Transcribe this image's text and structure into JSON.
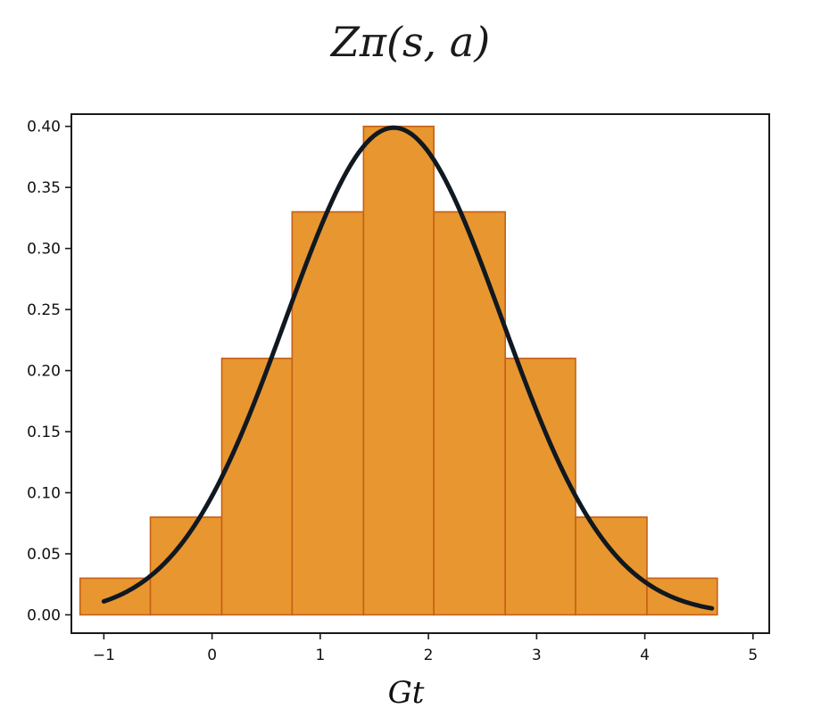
{
  "chart_data": {
    "type": "bar",
    "title": "Zπ(s, a)",
    "xlabel": "Gt",
    "ylabel": "",
    "xlim": [
      -1.3,
      5.15
    ],
    "ylim": [
      -0.015,
      0.41
    ],
    "x_ticks": [
      -1,
      0,
      1,
      2,
      3,
      4,
      5
    ],
    "y_ticks": [
      0.0,
      0.05,
      0.1,
      0.15,
      0.2,
      0.25,
      0.3,
      0.35,
      0.4
    ],
    "grid": false,
    "bin_edges": [
      -1.22,
      -0.57,
      0.09,
      0.74,
      1.4,
      2.05,
      2.71,
      3.36,
      4.02,
      4.67
    ],
    "values": [
      0.03,
      0.08,
      0.21,
      0.33,
      0.4,
      0.33,
      0.21,
      0.08,
      0.03
    ],
    "bar_color": "#e8962f",
    "bar_edge_color": "#c4601a",
    "curve": {
      "type": "normal_pdf",
      "mean": 1.68,
      "std": 1.0,
      "x_range": [
        -1.0,
        4.62
      ],
      "color": "#101820"
    }
  }
}
